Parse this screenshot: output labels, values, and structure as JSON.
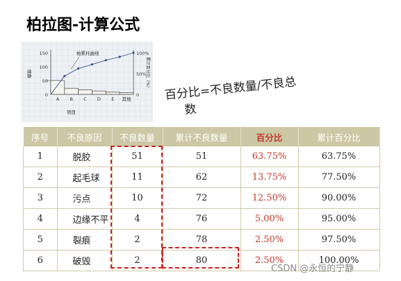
{
  "title": "柏拉图-计算公式",
  "chart": {
    "legend_label": "帕累托曲线",
    "left_axis_label": "频数",
    "right_axis_label": "累计百分比（%）",
    "x_axis_label": "项目",
    "left_ticks": [
      "150",
      "100",
      "50",
      "0"
    ],
    "right_ticks": [
      "100%",
      "50%",
      "0"
    ],
    "categories": [
      "A",
      "B",
      "C",
      "D",
      "E",
      "其他"
    ],
    "bar_values": [
      50,
      22,
      16,
      12,
      8,
      6
    ],
    "curve_values": [
      0,
      44,
      62,
      72,
      82,
      90,
      100
    ]
  },
  "annotation": {
    "line1": "百分比=不良数量/不良总",
    "line2": "数"
  },
  "table": {
    "headers": [
      "序号",
      "不良原因",
      "不良数量",
      "累计不良数量",
      "百分比",
      "累计百分比"
    ],
    "rows": [
      [
        "1",
        "脱胶",
        "51",
        "51",
        "63.75%",
        "63.75%"
      ],
      [
        "2",
        "起毛球",
        "11",
        "62",
        "13.75%",
        "77.50%"
      ],
      [
        "3",
        "污点",
        "10",
        "72",
        "12.50%",
        "90.00%"
      ],
      [
        "4",
        "边缘不平",
        "4",
        "76",
        "5.00%",
        "95.00%"
      ],
      [
        "5",
        "裂痕",
        "2",
        "78",
        "2.50%",
        "97.50%"
      ],
      [
        "6",
        "破毁",
        "2",
        "80",
        "2.50%",
        "100.00%"
      ]
    ]
  },
  "colors": {
    "header_bg": "#ccc7a4",
    "highlight_red": "#c0392b",
    "dash_red": "#cc1f1f",
    "bar_stroke": "#444444",
    "curve_color": "#3b4f8a"
  },
  "watermark": "CSDN @永恒的宁静"
}
